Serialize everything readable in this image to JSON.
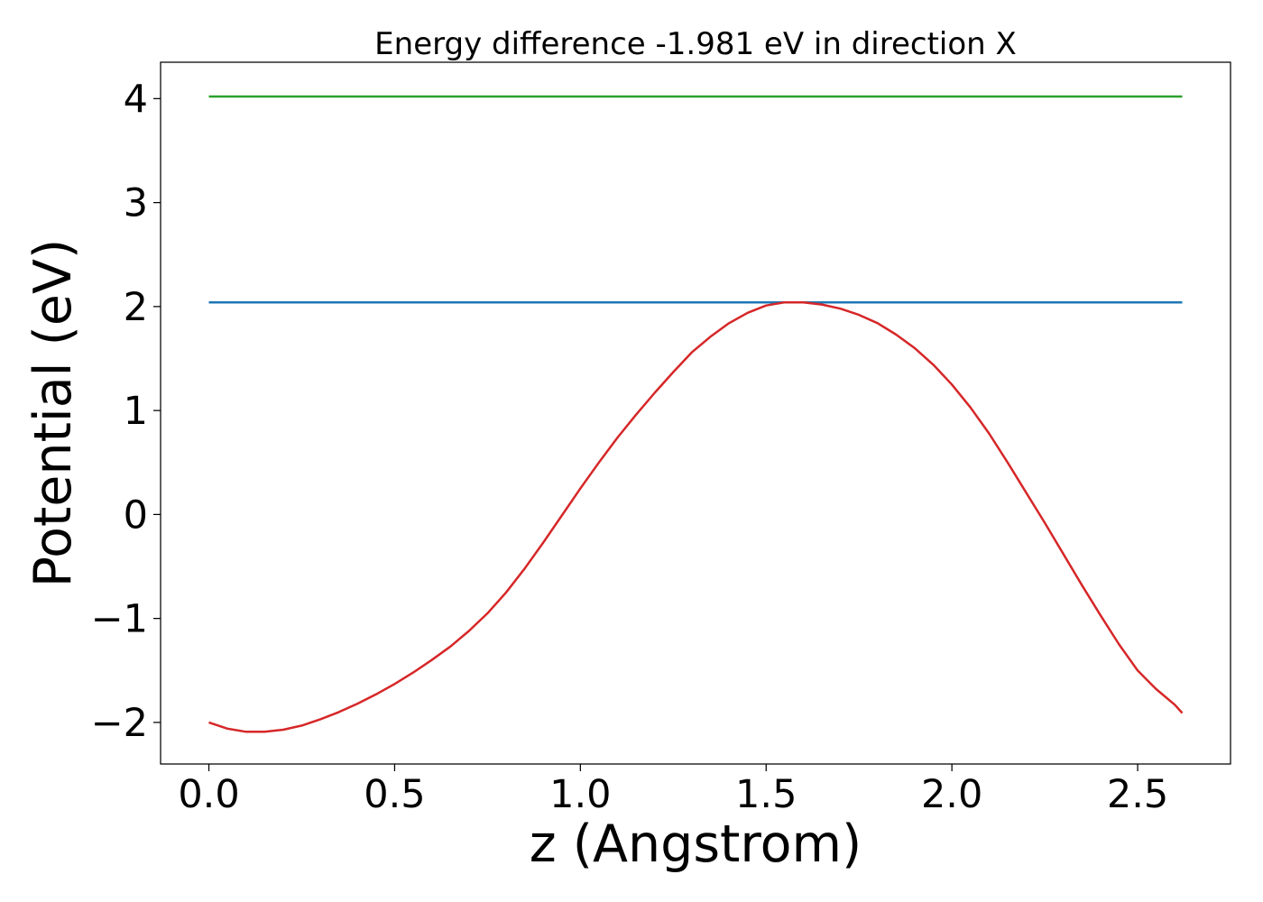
{
  "chart_data": {
    "type": "line",
    "title": "Energy difference -1.981 eV in direction X",
    "xlabel": "z (Angstrom)",
    "ylabel": "Potential (eV)",
    "xlim": [
      -0.13,
      2.75
    ],
    "ylim": [
      -2.4,
      4.35
    ],
    "xticks": [
      0.0,
      0.5,
      1.0,
      1.5,
      2.0,
      2.5
    ],
    "xtick_labels": [
      "0.0",
      "0.5",
      "1.0",
      "1.5",
      "2.0",
      "2.5"
    ],
    "yticks": [
      -2,
      -1,
      0,
      1,
      2,
      3,
      4
    ],
    "ytick_labels": [
      "−2",
      "−1",
      "0",
      "1",
      "2",
      "3",
      "4"
    ],
    "grid": false,
    "series": [
      {
        "color": "#2ca02c",
        "x": [
          0.0,
          2.62
        ],
        "y": [
          4.02,
          4.02
        ]
      },
      {
        "color": "#1f77b4",
        "x": [
          0.0,
          2.62
        ],
        "y": [
          2.04,
          2.04
        ]
      },
      {
        "color": "#d62728",
        "x": [
          0.0,
          0.05,
          0.1,
          0.15,
          0.2,
          0.25,
          0.3,
          0.35,
          0.4,
          0.45,
          0.5,
          0.55,
          0.6,
          0.65,
          0.7,
          0.75,
          0.8,
          0.85,
          0.9,
          0.95,
          1.0,
          1.05,
          1.1,
          1.15,
          1.2,
          1.25,
          1.3,
          1.35,
          1.4,
          1.45,
          1.5,
          1.55,
          1.6,
          1.65,
          1.7,
          1.75,
          1.8,
          1.85,
          1.9,
          1.95,
          2.0,
          2.05,
          2.1,
          2.15,
          2.2,
          2.25,
          2.3,
          2.35,
          2.4,
          2.45,
          2.5,
          2.55,
          2.6,
          2.62
        ],
        "y": [
          -2.0,
          -2.06,
          -2.09,
          -2.09,
          -2.07,
          -2.03,
          -1.97,
          -1.9,
          -1.82,
          -1.73,
          -1.63,
          -1.52,
          -1.4,
          -1.27,
          -1.12,
          -0.95,
          -0.75,
          -0.52,
          -0.27,
          -0.01,
          0.25,
          0.5,
          0.74,
          0.96,
          1.17,
          1.37,
          1.56,
          1.71,
          1.84,
          1.94,
          2.01,
          2.04,
          2.04,
          2.02,
          1.98,
          1.92,
          1.84,
          1.73,
          1.6,
          1.44,
          1.25,
          1.03,
          0.78,
          0.5,
          0.21,
          -0.08,
          -0.38,
          -0.68,
          -0.97,
          -1.25,
          -1.5,
          -1.68,
          -1.83,
          -1.91
        ]
      }
    ]
  }
}
